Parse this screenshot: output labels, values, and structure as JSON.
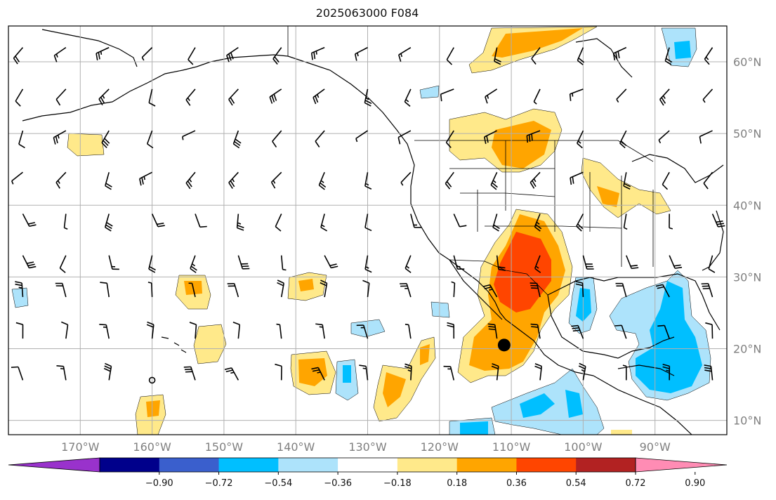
{
  "title": "2025063000 F084",
  "map": {
    "projection": "equirectangular",
    "lon_range": [
      -180,
      -80
    ],
    "lat_range": [
      8,
      65
    ],
    "lat_labels": [
      "60°N",
      "50°N",
      "40°N",
      "30°N",
      "20°N",
      "10°N"
    ],
    "lat_values": [
      60,
      50,
      40,
      30,
      20,
      10
    ],
    "lon_labels": [
      "170°W",
      "160°W",
      "150°W",
      "140°W",
      "130°W",
      "120°W",
      "110°W",
      "100°W",
      "90°W"
    ],
    "lon_values": [
      -170,
      -160,
      -150,
      -140,
      -130,
      -120,
      -110,
      -100,
      -90
    ],
    "marker": {
      "label": "storm-center-dot",
      "lon": -111,
      "lat": 20.5
    },
    "field": "anomaly contours with wind barbs"
  },
  "colorbar": {
    "tick_labels": [
      "−0.90",
      "−0.72",
      "−0.54",
      "−0.36",
      "−0.18",
      "0.18",
      "0.36",
      "0.54",
      "0.72",
      "0.90"
    ],
    "levels": [
      -0.9,
      -0.72,
      -0.54,
      -0.36,
      -0.18,
      0.18,
      0.36,
      0.54,
      0.72,
      0.9
    ],
    "colors": [
      "#9932cc",
      "#00008b",
      "#3a5fcd",
      "#00bfff",
      "#ade3fb",
      "#ffffff",
      "#ffe98a",
      "#ffa500",
      "#ff4500",
      "#b22222",
      "#ff8cb4"
    ],
    "extend": "both"
  },
  "colors": {
    "positive_light": "#ffe98a",
    "positive_mid": "#ffa500",
    "positive_high": "#ff4500",
    "negative_light": "#ade3fb",
    "negative_mid": "#00bfff",
    "grid": "#b0b0b0"
  }
}
